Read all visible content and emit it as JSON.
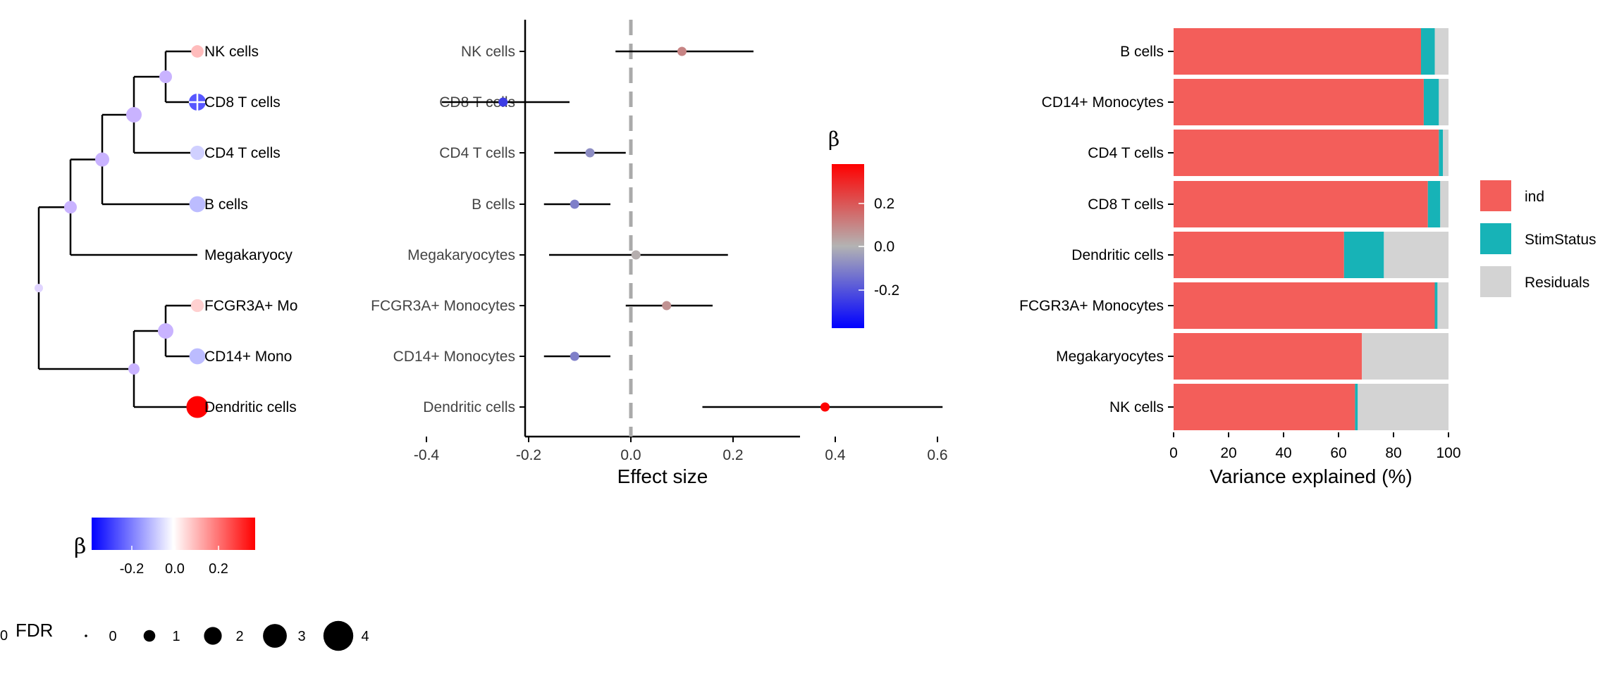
{
  "colors": {
    "ind": "#F35E5A",
    "StimStatus": "#17B3B7",
    "Residuals": "#D3D3D3",
    "beta_low": "#0000FF",
    "beta_mid": "#FFFFFF",
    "beta_high": "#FF0000",
    "forest_mid": "#B3B3B3"
  },
  "tree": {
    "tips": [
      "NK cells",
      "CD8 T cells",
      "CD4 T cells",
      "B cells",
      "Megakaryocy",
      "FCGR3A+ Mo",
      "CD14+ Mono",
      "Dendritic cells"
    ],
    "tip_beta": [
      0.1,
      -0.25,
      -0.07,
      -0.1,
      null,
      0.07,
      -0.1,
      0.38
    ],
    "tip_size": [
      1.2,
      2.2,
      1.6,
      2.0,
      null,
      1.3,
      2.0,
      3.3
    ],
    "legend_beta_label": "β",
    "legend_beta_ticks": [
      "-0.2",
      "0.0",
      "0.2"
    ],
    "legend_fdr_title": "FDR",
    "legend_fdr_title_prefix": "0",
    "legend_fdr_items": [
      "0",
      "1",
      "2",
      "3",
      "4"
    ]
  },
  "chart_data": [
    {
      "type": "scatter",
      "subtype": "forest",
      "categories": [
        "NK cells",
        "CD8 T cells",
        "CD4 T cells",
        "B cells",
        "Megakaryocytes",
        "FCGR3A+ Monocytes",
        "CD14+ Monocytes",
        "Dendritic cells"
      ],
      "estimate": [
        0.1,
        -0.25,
        -0.08,
        -0.11,
        0.01,
        0.07,
        -0.11,
        0.38
      ],
      "ci_low": [
        -0.03,
        -0.37,
        -0.15,
        -0.17,
        -0.16,
        -0.01,
        -0.17,
        0.14
      ],
      "ci_high": [
        0.24,
        -0.12,
        -0.01,
        -0.04,
        0.19,
        0.16,
        -0.04,
        0.61
      ],
      "xlabel": "Effect size",
      "xticks": [
        "-0.4",
        "-0.2",
        "0.0",
        "0.2",
        "0.4",
        "0.6"
      ],
      "xlim": [
        -0.43,
        0.66
      ],
      "legend_title": "β",
      "legend_ticks": [
        "0.2",
        "0.0",
        "-0.2"
      ],
      "reference_line": 0
    },
    {
      "type": "bar",
      "orientation": "horizontal",
      "stacked": true,
      "categories": [
        "B cells",
        "CD14+ Monocytes",
        "CD4 T cells",
        "CD8 T cells",
        "Dendritic cells",
        "FCGR3A+ Monocytes",
        "Megakaryocytes",
        "NK cells"
      ],
      "series": [
        {
          "name": "ind",
          "values": [
            90,
            91,
            96.5,
            92.5,
            62,
            95,
            68.5,
            66
          ]
        },
        {
          "name": "StimStatus",
          "values": [
            5,
            5.5,
            1.5,
            4.5,
            14.5,
            1,
            0,
            1
          ]
        },
        {
          "name": "Residuals",
          "values": [
            5,
            3.5,
            2,
            3,
            23.5,
            4,
            31.5,
            33
          ]
        }
      ],
      "xlabel": "Variance explained (%)",
      "xticks": [
        "0",
        "20",
        "40",
        "60",
        "80",
        "100"
      ],
      "xlim": [
        0,
        100
      ],
      "legend_position": "right"
    }
  ]
}
